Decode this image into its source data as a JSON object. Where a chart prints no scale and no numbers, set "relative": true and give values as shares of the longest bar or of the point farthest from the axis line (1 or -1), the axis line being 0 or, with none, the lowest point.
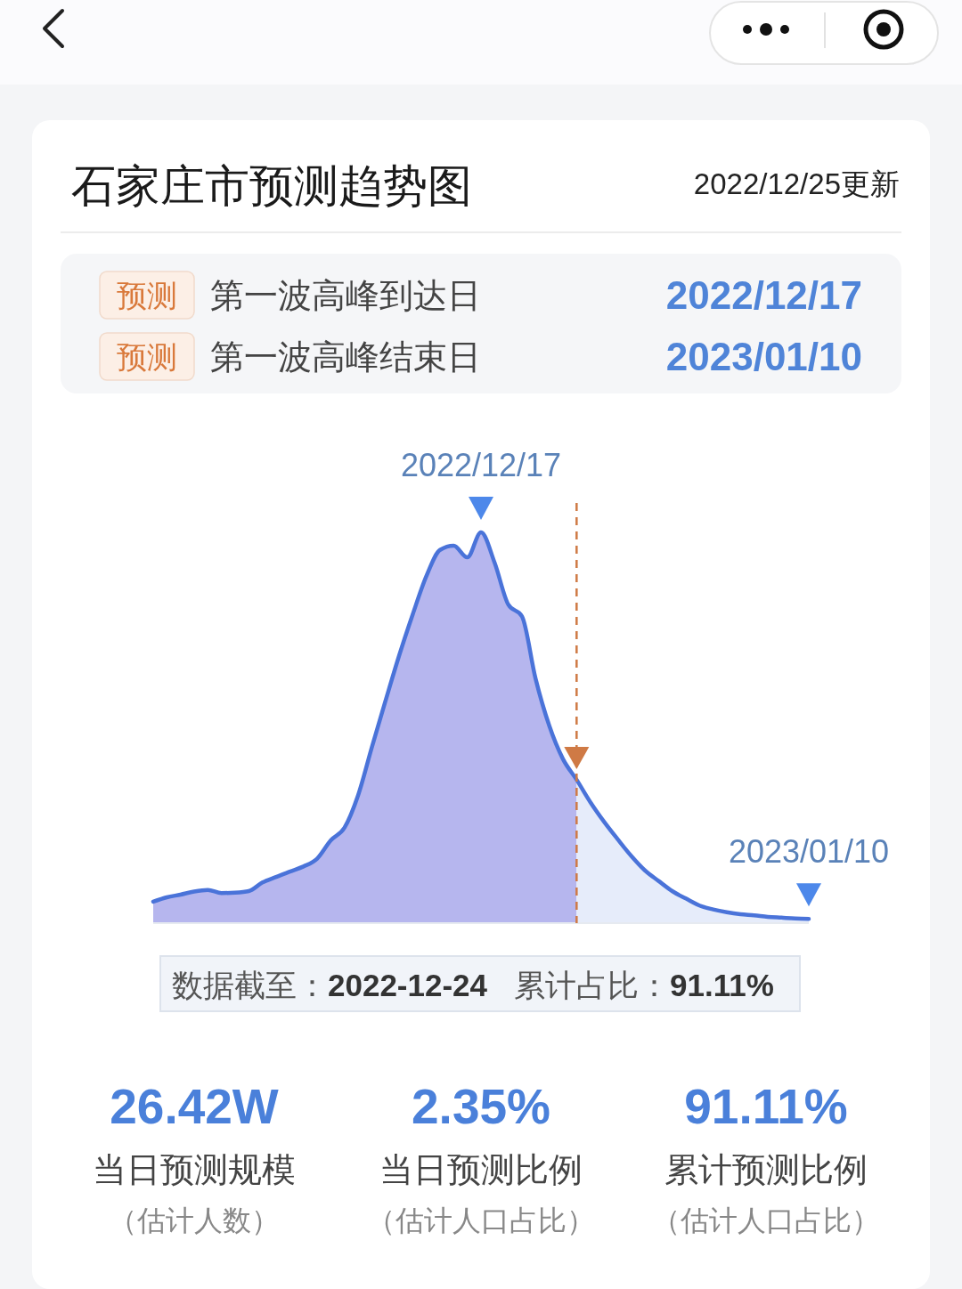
{
  "chart_data": {
    "type": "area",
    "title": "石家庄市预测趋势图",
    "subtitle": "2022/12/25更新",
    "relative": true,
    "categories": [
      null,
      null,
      null,
      null,
      null,
      null,
      null,
      null,
      null,
      null,
      null,
      null,
      null,
      null,
      null,
      null,
      null,
      null,
      null,
      null,
      null,
      null,
      null,
      null,
      null,
      null,
      null,
      null,
      null,
      null,
      null,
      null,
      null,
      null,
      null,
      null,
      null,
      null,
      null,
      null,
      null,
      null,
      null,
      null,
      null,
      null,
      null,
      null,
      null
    ],
    "series": [
      {
        "color": "#b6b6ee",
        "values": [
          0.055,
          0.066,
          0.073,
          0.081,
          0.085,
          0.077,
          0.078,
          0.082,
          0.104,
          0.118,
          0.132,
          0.145,
          0.165,
          0.212,
          0.244,
          0.327,
          0.449,
          0.568,
          0.684,
          0.79,
          0.888,
          0.955,
          0.966,
          0.936,
          1,
          0.922,
          0.815,
          0.785,
          0.625,
          0.505,
          0.42,
          0.367,
          null,
          null,
          null,
          null,
          null,
          null,
          null,
          null,
          null,
          null,
          null,
          null,
          null,
          null,
          null,
          null,
          null
        ]
      },
      {
        "color": "#e6ecfa",
        "values": [
          null,
          null,
          null,
          null,
          null,
          null,
          null,
          null,
          null,
          null,
          null,
          null,
          null,
          null,
          null,
          null,
          null,
          null,
          null,
          null,
          null,
          null,
          null,
          null,
          null,
          null,
          null,
          null,
          null,
          null,
          null,
          0.367,
          0.31,
          0.26,
          0.215,
          0.172,
          0.135,
          0.108,
          0.082,
          0.063,
          0.045,
          0.035,
          0.028,
          0.023,
          0.02,
          0.016,
          0.014,
          0.012,
          0.011
        ]
      },
      {
        "type": "line",
        "color": "#4a73d9",
        "values": [
          0.055,
          0.066,
          0.073,
          0.081,
          0.085,
          0.077,
          0.078,
          0.082,
          0.104,
          0.118,
          0.132,
          0.145,
          0.165,
          0.212,
          0.244,
          0.327,
          0.449,
          0.568,
          0.684,
          0.79,
          0.888,
          0.955,
          0.966,
          0.936,
          1,
          0.922,
          0.815,
          0.785,
          0.625,
          0.505,
          0.42,
          0.367,
          0.31,
          0.26,
          0.215,
          0.172,
          0.135,
          0.108,
          0.082,
          0.063,
          0.045,
          0.035,
          0.028,
          0.023,
          0.02,
          0.016,
          0.014,
          0.012,
          0.011
        ]
      }
    ],
    "annotations": [
      "预测",
      "第一波高峰到达日",
      "2022/12/17",
      "预测",
      "第一波高峰结束日",
      "2023/01/10",
      "数据截至：",
      "2022-12-24",
      "累计占比：",
      "91.11%",
      "26.42W",
      "当日预测规模",
      "（估计人数）",
      "2.35%",
      "当日预测比例",
      "（估计人口占比）",
      "91.11%",
      "累计预测比例",
      "（估计人口占比）",
      {
        "text": "2022/12/17",
        "y": 1
      },
      {
        "text": "2023/01/10",
        "y": 0.011
      }
    ]
  }
}
